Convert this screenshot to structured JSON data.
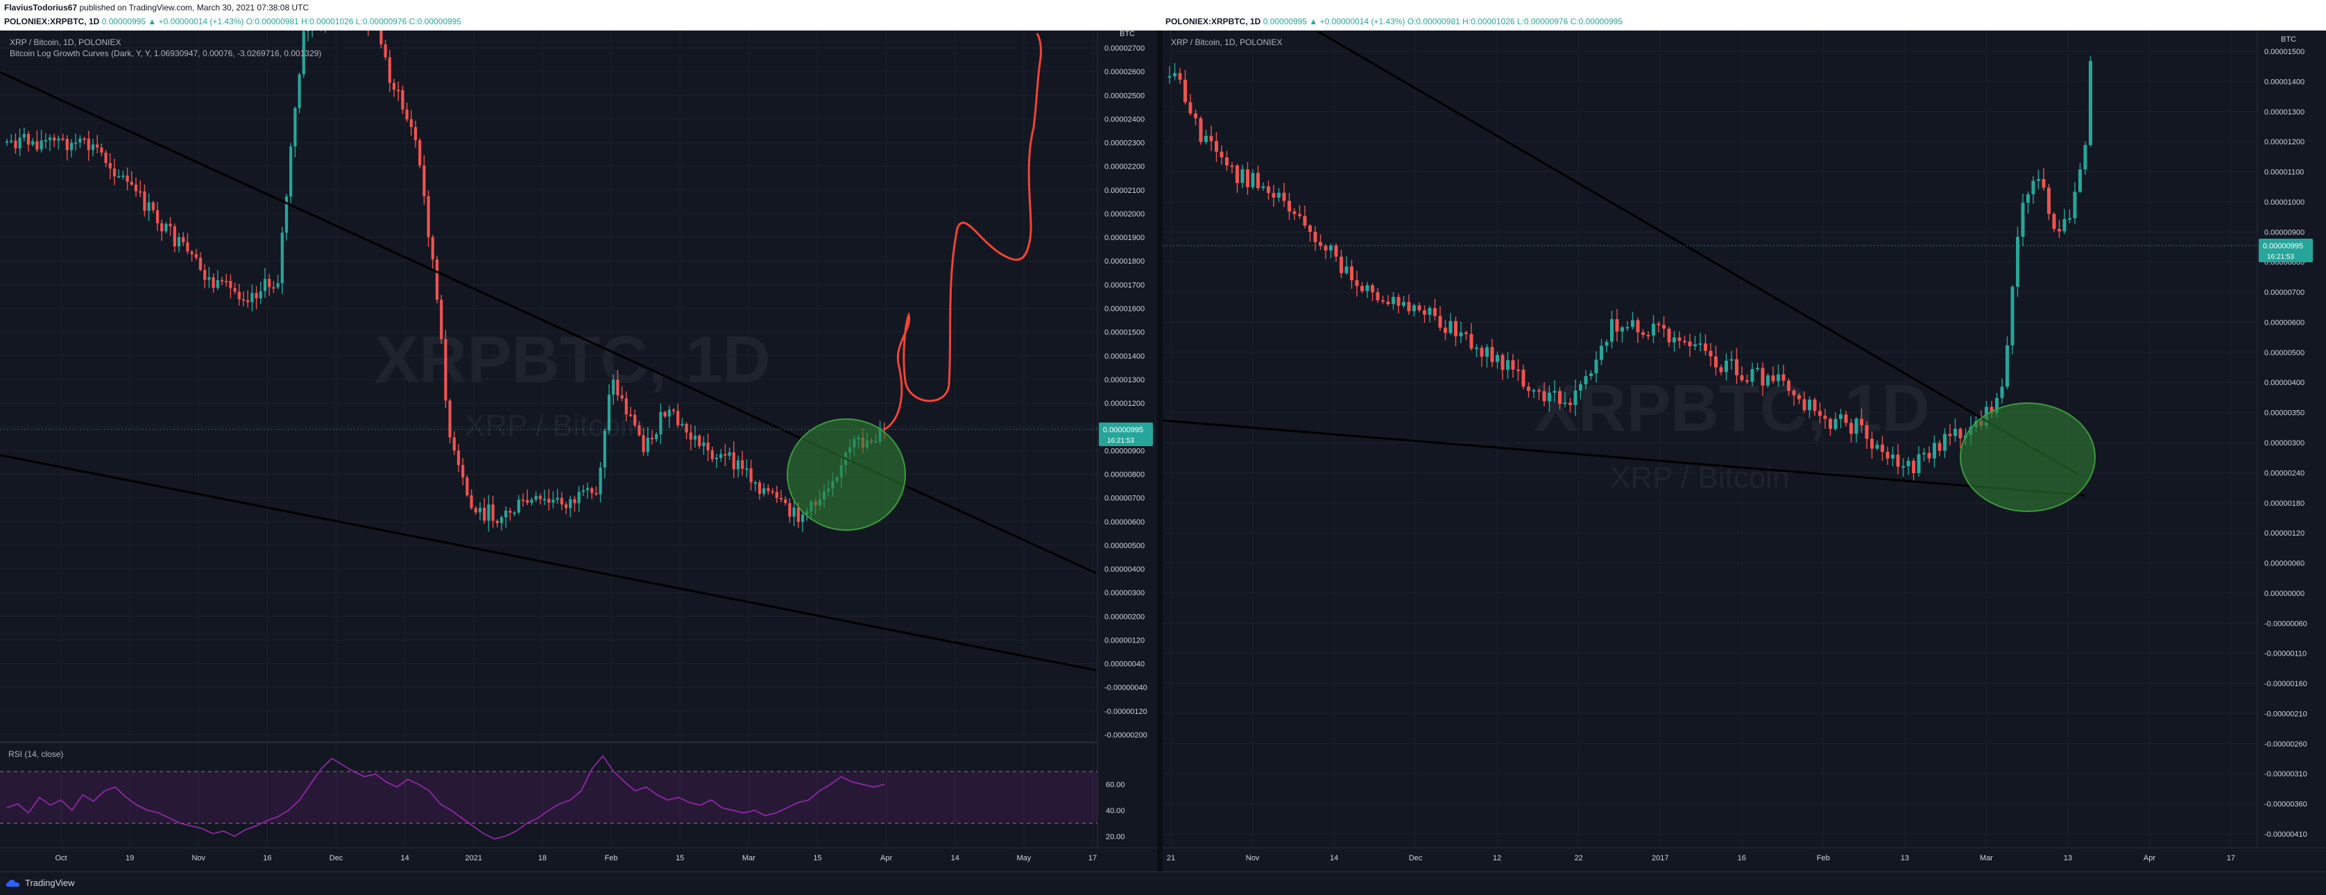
{
  "header": {
    "author": "FlaviusTodorius67",
    "published_text": " published on TradingView.com, March 30, 2021 07:38:08 UTC",
    "left_symbol": "POLONIEX:XRPBTC, 1D",
    "left_ohlc": " 0.00000995 ▲ +0.00000014 (+1.43%) O:0.00000981 H:0.00001026 L:0.00000976 C:0.00000995",
    "right_symbol": "POLONIEX:XRPBTC, 1D",
    "right_ohlc": " 0.00000995 ▲ +0.00000014 (+1.43%) O:0.00000981 H:0.00001026 L:0.00000976 C:0.00000995"
  },
  "footer": {
    "brand": "TradingView"
  },
  "colors": {
    "bull": "#26a69a",
    "bear": "#ef5350",
    "trendline": "#000000",
    "drawing": "#f44336",
    "highlight": "#2e7d32",
    "rsi": "#9c27b0",
    "grid": "#1e222d"
  },
  "chart_data": [
    {
      "type": "candlestick",
      "legend_title": "XRP / Bitcoin, 1D, POLONIEX",
      "indicator_label": "Bitcoin Log Growth Curves (Dark, Y, Y, 1.06930947, 0.00076, -3.0269716, 0.001329)",
      "watermark_main": "XRPBTC, 1D",
      "watermark_sub": "XRP / Bitcoin",
      "unit_label": "BTC",
      "y_ticks": [
        "0.00002700",
        "0.00002600",
        "0.00002500",
        "0.00002400",
        "0.00002300",
        "0.00002200",
        "0.00002100",
        "0.00002000",
        "0.00001900",
        "0.00001800",
        "0.00001700",
        "0.00001600",
        "0.00001500",
        "0.00001400",
        "0.00001300",
        "0.00001200",
        "0.00001100",
        "0.00000900",
        "0.00000800",
        "0.00000700",
        "0.00000600",
        "0.00000500",
        "0.00000400",
        "0.00000300",
        "0.00000200",
        "0.00000120",
        "0.00000040",
        "-0.00000040",
        "-0.00000120",
        "-0.00000200"
      ],
      "x_ticks": [
        "Oct",
        "19",
        "Nov",
        "16",
        "Dec",
        "14",
        "2021",
        "18",
        "Feb",
        "15",
        "Mar",
        "15",
        "Apr",
        "14",
        "May",
        "17"
      ],
      "last_price": "0.00000995",
      "countdown": "16:21:53",
      "rsi": {
        "label": "RSI (14, close)",
        "y_ticks": [
          "60.00",
          "40.00",
          "20.00"
        ],
        "upper_band": 70,
        "lower_band": 30,
        "values": [
          42,
          45,
          38,
          50,
          44,
          48,
          40,
          52,
          47,
          55,
          58,
          50,
          44,
          40,
          38,
          34,
          30,
          28,
          26,
          22,
          24,
          20,
          25,
          28,
          32,
          35,
          40,
          48,
          60,
          72,
          80,
          75,
          70,
          66,
          68,
          62,
          58,
          64,
          60,
          55,
          45,
          40,
          34,
          28,
          22,
          18,
          20,
          24,
          30,
          34,
          40,
          45,
          48,
          55,
          72,
          82,
          70,
          62,
          55,
          58,
          52,
          48,
          50,
          46,
          44,
          48,
          42,
          40,
          38,
          40,
          36,
          38,
          42,
          46,
          48,
          55,
          60,
          66,
          62,
          60,
          58,
          60
        ]
      }
    },
    {
      "type": "candlestick",
      "legend_title": "XRP / Bitcoin, 1D, POLONIEX",
      "watermark_main": "XRPBTC, 1D",
      "watermark_sub": "XRP / Bitcoin",
      "unit_label": "BTC",
      "y_ticks": [
        "0.00001500",
        "0.00001400",
        "0.00001300",
        "0.00001200",
        "0.00001100",
        "0.00001000",
        "0.00000900",
        "0.00000800",
        "0.00000700",
        "0.00000600",
        "0.00000500",
        "0.00000400",
        "0.00000350",
        "0.00000300",
        "0.00000240",
        "0.00000180",
        "0.00000120",
        "0.00000060",
        "0.00000000",
        "-0.00000060",
        "-0.00000110",
        "-0.00000160",
        "-0.00000210",
        "-0.00000260",
        "-0.00000310",
        "-0.00000360",
        "-0.00000410"
      ],
      "x_ticks": [
        "21",
        "Nov",
        "14",
        "Dec",
        "12",
        "22",
        "2017",
        "16",
        "Feb",
        "13",
        "Mar",
        "13",
        "Apr",
        "17"
      ],
      "last_price": "0.00000995",
      "countdown": "16:21:53"
    }
  ]
}
